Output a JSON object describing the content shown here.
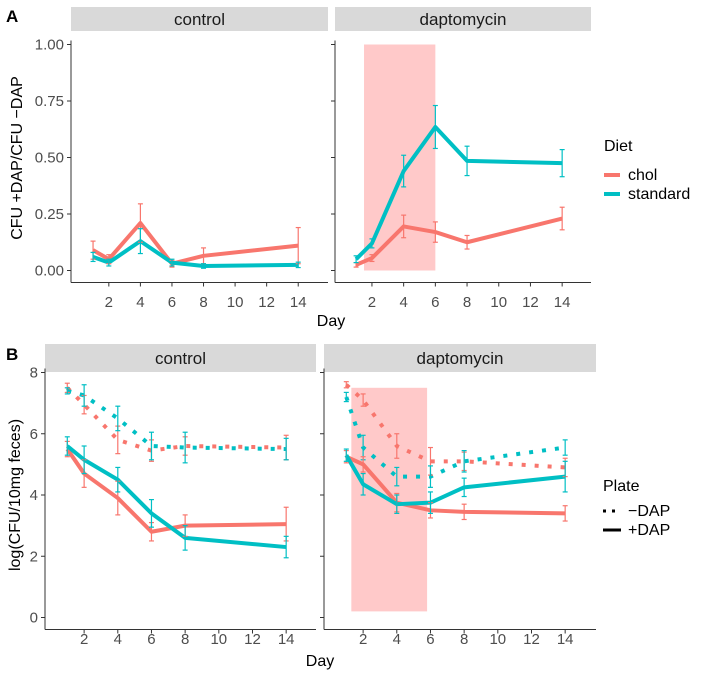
{
  "figure": {
    "panel_labels": [
      "A",
      "B"
    ]
  },
  "colors": {
    "chol": "#F8766D",
    "standard": "#00BFC4",
    "shade": "#FFC0C0",
    "strip": "#D9D9D9",
    "axis": "#333333"
  },
  "chart_data": [
    {
      "panel": "A",
      "type": "line",
      "facets": [
        "control",
        "daptomycin"
      ],
      "xlabel": "Day",
      "ylabel": "CFU +DAP/CFU −DAP",
      "xticks": [
        2,
        4,
        6,
        8,
        10,
        12,
        14
      ],
      "ylim": [
        0,
        1
      ],
      "yticks": [
        0.0,
        0.25,
        0.5,
        0.75,
        1.0
      ],
      "ytick_labels": [
        "0.00",
        "0.25",
        "0.50",
        "0.75",
        "1.00"
      ],
      "shaded_region": {
        "facet": "daptomycin",
        "x_from": 1.5,
        "x_to": 6,
        "y_from": 0,
        "y_to": 1
      },
      "legend": {
        "title": "Diet",
        "entries": [
          "chol",
          "standard"
        ],
        "position": "right"
      },
      "series": [
        {
          "facet": "control",
          "name": "chol",
          "x": [
            1,
            2,
            4,
            6,
            8,
            14
          ],
          "y": [
            0.09,
            0.05,
            0.21,
            0.03,
            0.065,
            0.11
          ],
          "err": [
            0.04,
            0.02,
            0.085,
            0.015,
            0.035,
            0.08
          ]
        },
        {
          "facet": "control",
          "name": "standard",
          "x": [
            1,
            2,
            4,
            6,
            8,
            14
          ],
          "y": [
            0.06,
            0.035,
            0.13,
            0.035,
            0.02,
            0.025
          ],
          "err": [
            0.02,
            0.015,
            0.055,
            0.015,
            0.01,
            0.012
          ]
        },
        {
          "facet": "daptomycin",
          "name": "chol",
          "x": [
            1,
            2,
            4,
            6,
            8,
            14
          ],
          "y": [
            0.025,
            0.055,
            0.195,
            0.17,
            0.125,
            0.23
          ],
          "err": [
            0.01,
            0.015,
            0.05,
            0.045,
            0.03,
            0.05
          ]
        },
        {
          "facet": "daptomycin",
          "name": "standard",
          "x": [
            1,
            2,
            4,
            6,
            8,
            14
          ],
          "y": [
            0.05,
            0.12,
            0.44,
            0.635,
            0.485,
            0.475
          ],
          "err": [
            0.015,
            0.02,
            0.07,
            0.095,
            0.065,
            0.06
          ]
        }
      ]
    },
    {
      "panel": "B",
      "type": "line",
      "facets": [
        "control",
        "daptomycin"
      ],
      "xlabel": "Day",
      "ylabel": "log(CFU/10mg feces)",
      "xticks": [
        2,
        4,
        6,
        8,
        10,
        12,
        14
      ],
      "ylim": [
        0,
        8
      ],
      "yticks": [
        0,
        2,
        4,
        6,
        8
      ],
      "ytick_labels": [
        "0",
        "2",
        "4",
        "6",
        "8"
      ],
      "shaded_region": {
        "facet": "daptomycin",
        "x_from": 1.3,
        "x_to": 5.8,
        "y_from": 0.2,
        "y_to": 7.5
      },
      "legend": {
        "title": "Plate",
        "entries": [
          "−DAP",
          "+DAP"
        ],
        "position": "right"
      },
      "series": [
        {
          "facet": "control",
          "name": "chol",
          "plate": "−DAP",
          "x": [
            1,
            2,
            4,
            6,
            8,
            14
          ],
          "y": [
            7.5,
            6.95,
            5.8,
            5.45,
            5.6,
            5.55
          ],
          "err": [
            0.15,
            0.3,
            0.45,
            0.35,
            0.3,
            0.4
          ]
        },
        {
          "facet": "control",
          "name": "standard",
          "plate": "−DAP",
          "x": [
            1,
            2,
            4,
            6,
            8,
            14
          ],
          "y": [
            7.4,
            7.25,
            6.5,
            5.6,
            5.55,
            5.5
          ],
          "err": [
            0.1,
            0.35,
            0.4,
            0.45,
            0.5,
            0.35
          ]
        },
        {
          "facet": "control",
          "name": "chol",
          "plate": "+DAP",
          "x": [
            1,
            2,
            4,
            6,
            8,
            14
          ],
          "y": [
            5.5,
            4.7,
            3.9,
            2.8,
            3.0,
            3.05
          ],
          "err": [
            0.25,
            0.45,
            0.55,
            0.3,
            0.35,
            0.55
          ]
        },
        {
          "facet": "control",
          "name": "standard",
          "plate": "+DAP",
          "x": [
            1,
            2,
            4,
            6,
            8,
            14
          ],
          "y": [
            5.6,
            5.15,
            4.5,
            3.4,
            2.6,
            2.3
          ],
          "err": [
            0.3,
            0.45,
            0.4,
            0.45,
            0.4,
            0.35
          ]
        },
        {
          "facet": "daptomycin",
          "name": "chol",
          "plate": "−DAP",
          "x": [
            1,
            2,
            4,
            6,
            8,
            14
          ],
          "y": [
            7.6,
            7.1,
            5.6,
            5.1,
            5.1,
            4.9
          ],
          "err": [
            0.1,
            0.2,
            0.4,
            0.45,
            0.3,
            0.3
          ]
        },
        {
          "facet": "daptomycin",
          "name": "standard",
          "plate": "−DAP",
          "x": [
            1,
            2,
            4,
            6,
            8,
            14
          ],
          "y": [
            7.2,
            5.55,
            4.6,
            4.6,
            5.1,
            5.55
          ],
          "err": [
            0.15,
            0.4,
            0.3,
            0.35,
            0.35,
            0.25
          ]
        },
        {
          "facet": "daptomycin",
          "name": "chol",
          "plate": "+DAP",
          "x": [
            1,
            2,
            4,
            6,
            8,
            14
          ],
          "y": [
            5.25,
            5.0,
            3.75,
            3.5,
            3.45,
            3.4
          ],
          "err": [
            0.2,
            0.25,
            0.3,
            0.25,
            0.25,
            0.25
          ]
        },
        {
          "facet": "daptomycin",
          "name": "standard",
          "plate": "+DAP",
          "x": [
            1,
            2,
            4,
            6,
            8,
            14
          ],
          "y": [
            5.3,
            4.35,
            3.7,
            3.75,
            4.25,
            4.6
          ],
          "err": [
            0.2,
            0.35,
            0.3,
            0.35,
            0.3,
            0.5
          ]
        }
      ]
    }
  ]
}
